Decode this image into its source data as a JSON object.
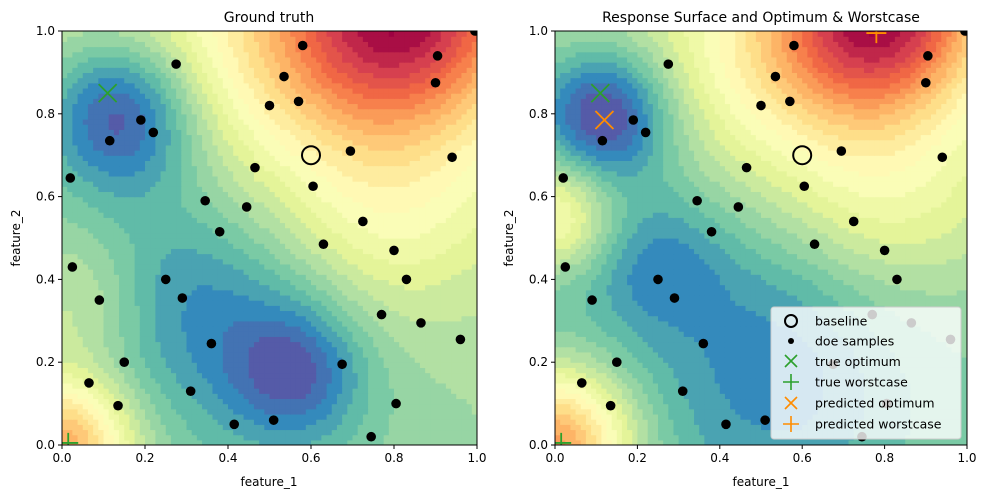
{
  "chart_data": [
    {
      "type": "contour",
      "title": "Ground truth",
      "xlabel": "feature_1",
      "ylabel": "feature_2",
      "xlim": [
        0.0,
        1.0
      ],
      "ylim": [
        0.0,
        1.0
      ],
      "xticks": [
        "0.0",
        "0.2",
        "0.4",
        "0.6",
        "0.8",
        "1.0"
      ],
      "yticks": [
        "0.0",
        "0.2",
        "0.4",
        "0.6",
        "0.8",
        "1.0"
      ],
      "colormap": "Spectral",
      "surface": {
        "peaks": [
          {
            "x": 0.83,
            "y": 1.05,
            "value": 1.0,
            "spread": 0.2
          },
          {
            "x": 0.0,
            "y": 0.0,
            "value": 0.85,
            "spread": 0.12
          },
          {
            "x": 0.55,
            "y": 0.95,
            "value": 0.35,
            "spread": 0.22
          },
          {
            "x": 0.78,
            "y": 0.55,
            "value": 0.3,
            "spread": 0.2
          },
          {
            "x": 0.05,
            "y": 0.35,
            "value": 0.25,
            "spread": 0.12
          }
        ],
        "valleys": [
          {
            "x": 0.14,
            "y": 0.8,
            "value": 0.55,
            "spread": 0.13
          },
          {
            "x": 0.56,
            "y": 0.18,
            "value": 0.4,
            "spread": 0.12
          },
          {
            "x": 0.3,
            "y": 0.35,
            "value": 0.25,
            "spread": 0.2
          }
        ]
      },
      "baseline": {
        "x": 0.6,
        "y": 0.7
      },
      "doe_samples": [
        {
          "x": 0.02,
          "y": 0.645
        },
        {
          "x": 0.025,
          "y": 0.43
        },
        {
          "x": 0.065,
          "y": 0.15
        },
        {
          "x": 0.09,
          "y": 0.35
        },
        {
          "x": 0.115,
          "y": 0.735
        },
        {
          "x": 0.135,
          "y": 0.095
        },
        {
          "x": 0.15,
          "y": 0.2
        },
        {
          "x": 0.19,
          "y": 0.785
        },
        {
          "x": 0.22,
          "y": 0.755
        },
        {
          "x": 0.25,
          "y": 0.4
        },
        {
          "x": 0.275,
          "y": 0.92
        },
        {
          "x": 0.29,
          "y": 0.355
        },
        {
          "x": 0.31,
          "y": 0.13
        },
        {
          "x": 0.345,
          "y": 0.59
        },
        {
          "x": 0.36,
          "y": 0.245
        },
        {
          "x": 0.38,
          "y": 0.515
        },
        {
          "x": 0.415,
          "y": 0.05
        },
        {
          "x": 0.445,
          "y": 0.575
        },
        {
          "x": 0.465,
          "y": 0.67
        },
        {
          "x": 0.5,
          "y": 0.82
        },
        {
          "x": 0.51,
          "y": 0.06
        },
        {
          "x": 0.535,
          "y": 0.89
        },
        {
          "x": 0.57,
          "y": 0.83
        },
        {
          "x": 0.58,
          "y": 0.965
        },
        {
          "x": 0.605,
          "y": 0.625
        },
        {
          "x": 0.63,
          "y": 0.485
        },
        {
          "x": 0.675,
          "y": 0.195
        },
        {
          "x": 0.695,
          "y": 0.71
        },
        {
          "x": 0.725,
          "y": 0.54
        },
        {
          "x": 0.745,
          "y": 0.02
        },
        {
          "x": 0.77,
          "y": 0.315
        },
        {
          "x": 0.8,
          "y": 0.47
        },
        {
          "x": 0.805,
          "y": 0.1
        },
        {
          "x": 0.83,
          "y": 0.4
        },
        {
          "x": 0.865,
          "y": 0.295
        },
        {
          "x": 0.9,
          "y": 0.875
        },
        {
          "x": 0.905,
          "y": 0.94
        },
        {
          "x": 0.94,
          "y": 0.695
        },
        {
          "x": 0.96,
          "y": 0.255
        },
        {
          "x": 0.995,
          "y": 1.0
        }
      ],
      "true_optimum": {
        "x": 0.11,
        "y": 0.85
      },
      "true_worstcase": {
        "x": 0.015,
        "y": 0.005
      }
    },
    {
      "type": "contour",
      "title": "Response Surface and Optimum & Worstcase",
      "xlabel": "feature_1",
      "ylabel": "feature_2",
      "xlim": [
        0.0,
        1.0
      ],
      "ylim": [
        0.0,
        1.0
      ],
      "xticks": [
        "0.0",
        "0.2",
        "0.4",
        "0.6",
        "0.8",
        "1.0"
      ],
      "yticks": [
        "0.0",
        "0.2",
        "0.4",
        "0.6",
        "0.8",
        "1.0"
      ],
      "colormap": "Spectral",
      "surface": {
        "peaks": [
          {
            "x": 0.8,
            "y": 1.05,
            "value": 1.05,
            "spread": 0.17
          },
          {
            "x": 0.0,
            "y": 0.0,
            "value": 0.95,
            "spread": 0.13
          },
          {
            "x": 0.0,
            "y": 0.55,
            "value": 0.45,
            "spread": 0.1
          },
          {
            "x": 0.55,
            "y": 0.93,
            "value": 0.4,
            "spread": 0.2
          },
          {
            "x": 0.8,
            "y": 0.6,
            "value": 0.3,
            "spread": 0.2
          }
        ],
        "valleys": [
          {
            "x": 0.12,
            "y": 0.8,
            "value": 0.55,
            "spread": 0.11
          },
          {
            "x": 0.25,
            "y": 0.45,
            "value": 0.2,
            "spread": 0.12
          },
          {
            "x": 0.55,
            "y": 0.2,
            "value": 0.2,
            "spread": 0.2
          }
        ]
      },
      "baseline": {
        "x": 0.6,
        "y": 0.7
      },
      "doe_samples": "same as panel 1",
      "true_optimum": {
        "x": 0.11,
        "y": 0.85
      },
      "true_worstcase": {
        "x": 0.015,
        "y": 0.005
      },
      "predicted_optimum": {
        "x": 0.12,
        "y": 0.785
      },
      "predicted_worstcase": {
        "x": 0.78,
        "y": 0.995
      },
      "legend": {
        "placement": "lower right",
        "entries": [
          "baseline",
          "doe samples",
          "true optimum",
          "true worstcase",
          "predicted optimum",
          "predicted worstcase"
        ]
      }
    }
  ],
  "colors": {
    "true_optimum": "#2ca02c",
    "true_worstcase": "#2ca02c",
    "predicted": "#ff8c00",
    "samples": "#000000"
  }
}
